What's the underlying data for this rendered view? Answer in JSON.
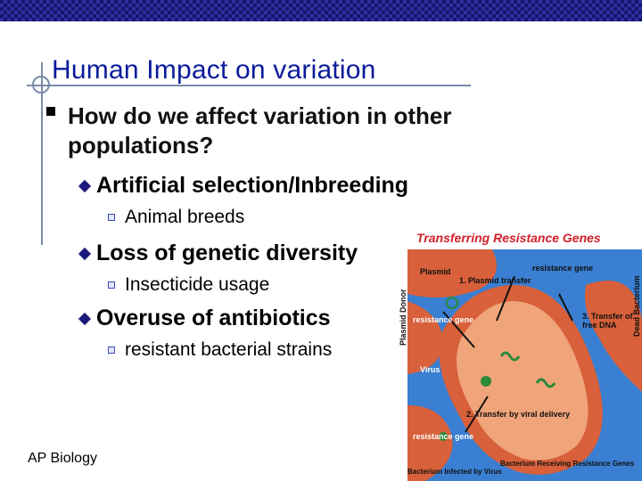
{
  "slide": {
    "title": "Human Impact on variation",
    "bullet": "How do we affect variation in other populations?",
    "items": [
      {
        "label": "Artificial selection/Inbreeding",
        "sub": "Animal breeds"
      },
      {
        "label": "Loss of genetic diversity",
        "sub": "Insecticide usage"
      },
      {
        "label": "Overuse of antibiotics",
        "sub": "resistant bacterial strains"
      }
    ],
    "footer": "AP Biology"
  },
  "figure": {
    "title": "Transferring Resistance Genes",
    "labels": {
      "plasmid": "Plasmid",
      "resistance_gene_top": "resistance gene",
      "step1": "1. Plasmid transfer",
      "plasmid_donor": "Plasmid Donor",
      "resistance_gene_left": "resistance gene",
      "step3": "3. Transfer of free DNA",
      "dead_bacterium": "Dead Bacterium",
      "virus": "Virus",
      "step2": "2. Transfer by viral delivery",
      "resistance_gene_bottom": "resistance gene",
      "infected": "Bacterium Infected by Virus",
      "receiving": "Bacterium Receiving Resistance Genes"
    }
  },
  "colors": {
    "title": "#0b1b9a",
    "figure_title": "#d2202a",
    "figure_background": "#3a7fd1",
    "bacterium": "#d8603a",
    "bacterium_inner": "#f0a47a"
  }
}
